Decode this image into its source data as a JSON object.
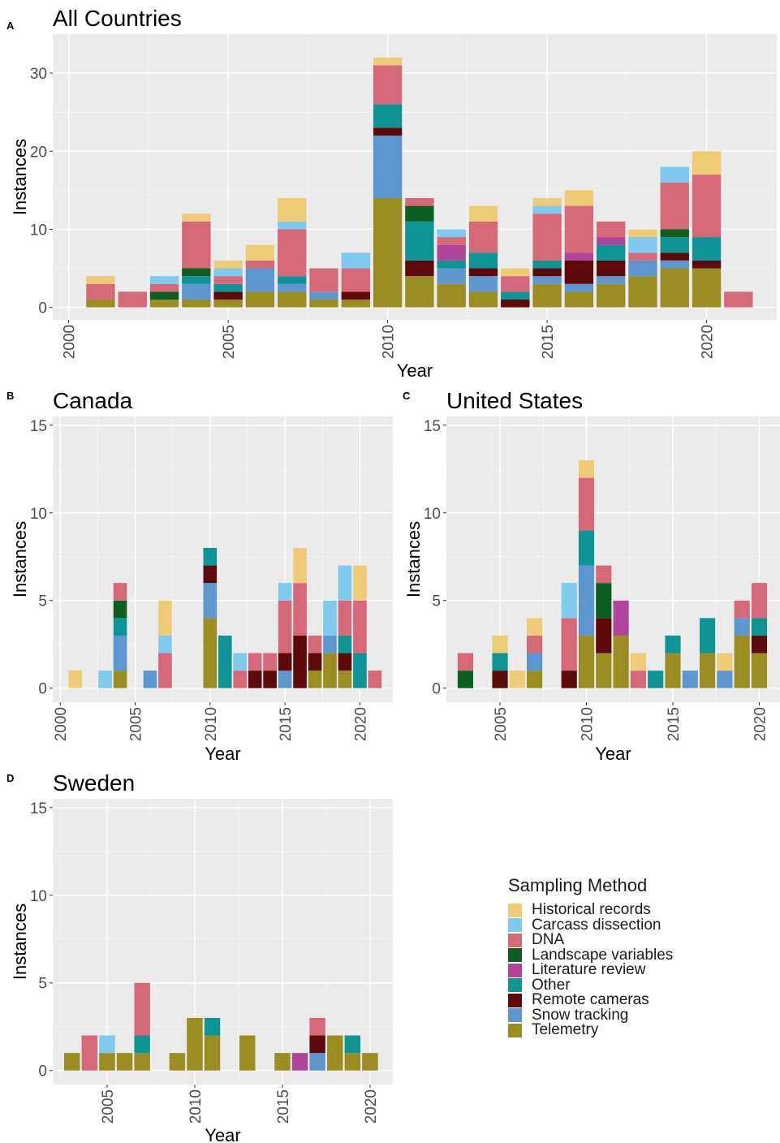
{
  "legend": {
    "title": "Sampling Method",
    "items": [
      {
        "name": "Historical records",
        "color": "#EECC77"
      },
      {
        "name": "Carcass dissection",
        "color": "#7FCAEE"
      },
      {
        "name": "DNA",
        "color": "#D5697A"
      },
      {
        "name": "Landscape variables",
        "color": "#0D5E22"
      },
      {
        "name": "Literature review",
        "color": "#B0449A"
      },
      {
        "name": "Other",
        "color": "#0E9494"
      },
      {
        "name": "Remote cameras",
        "color": "#5E0A0A"
      },
      {
        "name": "Snow tracking",
        "color": "#5E96CF"
      },
      {
        "name": "Telemetry",
        "color": "#9A8E23"
      }
    ]
  },
  "chart_data": [
    {
      "type": "bar",
      "stacked": true,
      "panel": "A",
      "title": "All Countries",
      "xlabel": "Year",
      "ylabel": "Instances",
      "xlim": [
        1999.5,
        2022.2
      ],
      "ylim": [
        -1.6,
        35
      ],
      "xticks": [
        2000,
        2005,
        2010,
        2015,
        2020
      ],
      "yticks": [
        0,
        10,
        20,
        30
      ],
      "stack_order": [
        "Telemetry",
        "Snow tracking",
        "Remote cameras",
        "Other",
        "Literature review",
        "Landscape variables",
        "DNA",
        "Carcass dissection",
        "Historical records"
      ],
      "bars": [
        {
          "x": 2001,
          "v": {
            "Telemetry": 1,
            "DNA": 2,
            "Historical records": 1
          }
        },
        {
          "x": 2002,
          "v": {
            "DNA": 2
          }
        },
        {
          "x": 2003,
          "v": {
            "Telemetry": 1,
            "Landscape variables": 1,
            "DNA": 1,
            "Carcass dissection": 1
          }
        },
        {
          "x": 2004,
          "v": {
            "Telemetry": 1,
            "Snow tracking": 2,
            "Other": 1,
            "Landscape variables": 1,
            "DNA": 6,
            "Historical records": 1
          }
        },
        {
          "x": 2005,
          "v": {
            "Telemetry": 1,
            "Remote cameras": 1,
            "Other": 1,
            "DNA": 1,
            "Carcass dissection": 1,
            "Historical records": 1
          }
        },
        {
          "x": 2006,
          "v": {
            "Telemetry": 2,
            "Snow tracking": 3,
            "DNA": 1,
            "Historical records": 2
          }
        },
        {
          "x": 2007,
          "v": {
            "Telemetry": 2,
            "Snow tracking": 1,
            "Other": 1,
            "DNA": 6,
            "Carcass dissection": 1,
            "Historical records": 3
          }
        },
        {
          "x": 2008,
          "v": {
            "Telemetry": 1,
            "Snow tracking": 1,
            "DNA": 3
          }
        },
        {
          "x": 2009,
          "v": {
            "Telemetry": 1,
            "Remote cameras": 1,
            "DNA": 3,
            "Carcass dissection": 2
          }
        },
        {
          "x": 2010,
          "v": {
            "Telemetry": 14,
            "Snow tracking": 8,
            "Remote cameras": 1,
            "Other": 3,
            "DNA": 5,
            "Historical records": 1
          }
        },
        {
          "x": 2011,
          "v": {
            "Telemetry": 4,
            "Remote cameras": 2,
            "Other": 5,
            "Landscape variables": 2,
            "DNA": 1
          }
        },
        {
          "x": 2012,
          "v": {
            "Telemetry": 3,
            "Snow tracking": 2,
            "Other": 1,
            "Literature review": 2,
            "DNA": 1,
            "Carcass dissection": 1
          }
        },
        {
          "x": 2013,
          "v": {
            "Telemetry": 2,
            "Snow tracking": 2,
            "Remote cameras": 1,
            "Other": 2,
            "DNA": 4,
            "Historical records": 2
          }
        },
        {
          "x": 2014,
          "v": {
            "Remote cameras": 1,
            "Other": 1,
            "DNA": 2,
            "Historical records": 1
          }
        },
        {
          "x": 2015,
          "v": {
            "Telemetry": 3,
            "Snow tracking": 1,
            "Remote cameras": 1,
            "Other": 1,
            "DNA": 6,
            "Carcass dissection": 1,
            "Historical records": 1
          }
        },
        {
          "x": 2016,
          "v": {
            "Telemetry": 2,
            "Snow tracking": 1,
            "Remote cameras": 3,
            "Literature review": 1,
            "DNA": 6,
            "Historical records": 2
          }
        },
        {
          "x": 2017,
          "v": {
            "Telemetry": 3,
            "Snow tracking": 1,
            "Remote cameras": 2,
            "Other": 2,
            "Literature review": 1,
            "DNA": 2
          }
        },
        {
          "x": 2018,
          "v": {
            "Telemetry": 4,
            "Snow tracking": 2,
            "DNA": 1,
            "Carcass dissection": 2,
            "Historical records": 1
          }
        },
        {
          "x": 2019,
          "v": {
            "Telemetry": 5,
            "Snow tracking": 1,
            "Remote cameras": 1,
            "Other": 2,
            "Landscape variables": 1,
            "DNA": 6,
            "Carcass dissection": 2
          }
        },
        {
          "x": 2020,
          "v": {
            "Telemetry": 5,
            "Remote cameras": 1,
            "Other": 3,
            "DNA": 8,
            "Historical records": 3
          }
        },
        {
          "x": 2021,
          "v": {
            "DNA": 2
          }
        }
      ]
    },
    {
      "type": "bar",
      "stacked": true,
      "panel": "B",
      "title": "Canada",
      "xlabel": "Year",
      "ylabel": "Instances",
      "xlim": [
        1999.5,
        2022.2
      ],
      "ylim": [
        -0.8,
        15.5
      ],
      "xticks": [
        2000,
        2005,
        2010,
        2015,
        2020
      ],
      "yticks": [
        0,
        5,
        10,
        15
      ],
      "stack_order": [
        "Telemetry",
        "Snow tracking",
        "Remote cameras",
        "Other",
        "Literature review",
        "Landscape variables",
        "DNA",
        "Carcass dissection",
        "Historical records"
      ],
      "bars": [
        {
          "x": 2001,
          "v": {
            "Historical records": 1
          }
        },
        {
          "x": 2003,
          "v": {
            "Carcass dissection": 1
          }
        },
        {
          "x": 2004,
          "v": {
            "Telemetry": 1,
            "Snow tracking": 2,
            "Other": 1,
            "Landscape variables": 1,
            "DNA": 1
          }
        },
        {
          "x": 2006,
          "v": {
            "Snow tracking": 1
          }
        },
        {
          "x": 2007,
          "v": {
            "DNA": 2,
            "Carcass dissection": 1,
            "Historical records": 2
          }
        },
        {
          "x": 2010,
          "v": {
            "Telemetry": 4,
            "Snow tracking": 2,
            "Remote cameras": 1,
            "Other": 1
          }
        },
        {
          "x": 2011,
          "v": {
            "Other": 3
          }
        },
        {
          "x": 2012,
          "v": {
            "DNA": 1,
            "Carcass dissection": 1
          }
        },
        {
          "x": 2013,
          "v": {
            "Remote cameras": 1,
            "DNA": 1
          }
        },
        {
          "x": 2014,
          "v": {
            "Remote cameras": 1,
            "DNA": 1
          }
        },
        {
          "x": 2015,
          "v": {
            "Snow tracking": 1,
            "Remote cameras": 1,
            "DNA": 3,
            "Carcass dissection": 1
          }
        },
        {
          "x": 2016,
          "v": {
            "Remote cameras": 3,
            "DNA": 3,
            "Historical records": 2
          }
        },
        {
          "x": 2017,
          "v": {
            "Telemetry": 1,
            "Remote cameras": 1,
            "DNA": 1
          }
        },
        {
          "x": 2018,
          "v": {
            "Telemetry": 2,
            "Snow tracking": 1,
            "Carcass dissection": 2
          }
        },
        {
          "x": 2019,
          "v": {
            "Telemetry": 1,
            "Remote cameras": 1,
            "Other": 1,
            "DNA": 2,
            "Carcass dissection": 2
          }
        },
        {
          "x": 2020,
          "v": {
            "Other": 2,
            "DNA": 3,
            "Historical records": 2
          }
        },
        {
          "x": 2021,
          "v": {
            "DNA": 1
          }
        }
      ]
    },
    {
      "type": "bar",
      "stacked": true,
      "panel": "C",
      "title": "United States",
      "xlabel": "Year",
      "ylabel": "Instances",
      "xlim": [
        2001.9,
        2021.2
      ],
      "ylim": [
        -0.8,
        15.5
      ],
      "xticks": [
        2005,
        2010,
        2015,
        2020
      ],
      "yticks": [
        0,
        5,
        10,
        15
      ],
      "stack_order": [
        "Telemetry",
        "Snow tracking",
        "Remote cameras",
        "Other",
        "Literature review",
        "Landscape variables",
        "DNA",
        "Carcass dissection",
        "Historical records"
      ],
      "bars": [
        {
          "x": 2003,
          "v": {
            "Landscape variables": 1,
            "DNA": 1
          }
        },
        {
          "x": 2005,
          "v": {
            "Remote cameras": 1,
            "Other": 1,
            "Historical records": 1
          }
        },
        {
          "x": 2006,
          "v": {
            "Historical records": 1
          }
        },
        {
          "x": 2007,
          "v": {
            "Telemetry": 1,
            "Snow tracking": 1,
            "DNA": 1,
            "Historical records": 1
          }
        },
        {
          "x": 2009,
          "v": {
            "Remote cameras": 1,
            "DNA": 3,
            "Carcass dissection": 2
          }
        },
        {
          "x": 2010,
          "v": {
            "Telemetry": 3,
            "Snow tracking": 4,
            "Other": 2,
            "DNA": 3,
            "Historical records": 1
          }
        },
        {
          "x": 2011,
          "v": {
            "Telemetry": 2,
            "Remote cameras": 2,
            "Landscape variables": 2,
            "DNA": 1
          }
        },
        {
          "x": 2012,
          "v": {
            "Telemetry": 3,
            "Literature review": 2
          }
        },
        {
          "x": 2013,
          "v": {
            "DNA": 1,
            "Historical records": 1
          }
        },
        {
          "x": 2014,
          "v": {
            "Other": 1
          }
        },
        {
          "x": 2015,
          "v": {
            "Telemetry": 2,
            "Other": 1
          }
        },
        {
          "x": 2016,
          "v": {
            "Snow tracking": 1
          }
        },
        {
          "x": 2017,
          "v": {
            "Telemetry": 2,
            "Other": 2
          }
        },
        {
          "x": 2018,
          "v": {
            "Snow tracking": 1,
            "Historical records": 1
          }
        },
        {
          "x": 2019,
          "v": {
            "Telemetry": 3,
            "Snow tracking": 1,
            "DNA": 1
          }
        },
        {
          "x": 2020,
          "v": {
            "Telemetry": 2,
            "Remote cameras": 1,
            "Other": 1,
            "DNA": 2
          }
        }
      ]
    },
    {
      "type": "bar",
      "stacked": true,
      "panel": "D",
      "title": "Sweden",
      "xlabel": "Year",
      "ylabel": "Instances",
      "xlim": [
        2001.9,
        2021.3
      ],
      "ylim": [
        -0.8,
        15.5
      ],
      "xticks": [
        2005,
        2010,
        2015,
        2020
      ],
      "yticks": [
        0,
        5,
        10,
        15
      ],
      "stack_order": [
        "Telemetry",
        "Snow tracking",
        "Remote cameras",
        "Other",
        "Literature review",
        "Landscape variables",
        "DNA",
        "Carcass dissection",
        "Historical records"
      ],
      "bars": [
        {
          "x": 2003,
          "v": {
            "Telemetry": 1
          }
        },
        {
          "x": 2004,
          "v": {
            "DNA": 2
          }
        },
        {
          "x": 2005,
          "v": {
            "Telemetry": 1,
            "Carcass dissection": 1
          }
        },
        {
          "x": 2006,
          "v": {
            "Telemetry": 1
          }
        },
        {
          "x": 2007,
          "v": {
            "Telemetry": 1,
            "Other": 1,
            "DNA": 3
          }
        },
        {
          "x": 2009,
          "v": {
            "Telemetry": 1
          }
        },
        {
          "x": 2010,
          "v": {
            "Telemetry": 3
          }
        },
        {
          "x": 2011,
          "v": {
            "Telemetry": 2,
            "Other": 1
          }
        },
        {
          "x": 2013,
          "v": {
            "Telemetry": 2
          }
        },
        {
          "x": 2015,
          "v": {
            "Telemetry": 1
          }
        },
        {
          "x": 2016,
          "v": {
            "Literature review": 1
          }
        },
        {
          "x": 2017,
          "v": {
            "Snow tracking": 1,
            "Remote cameras": 1,
            "DNA": 1
          }
        },
        {
          "x": 2018,
          "v": {
            "Telemetry": 2
          }
        },
        {
          "x": 2019,
          "v": {
            "Telemetry": 1,
            "Other": 1
          }
        },
        {
          "x": 2020,
          "v": {
            "Telemetry": 1
          }
        }
      ]
    }
  ]
}
